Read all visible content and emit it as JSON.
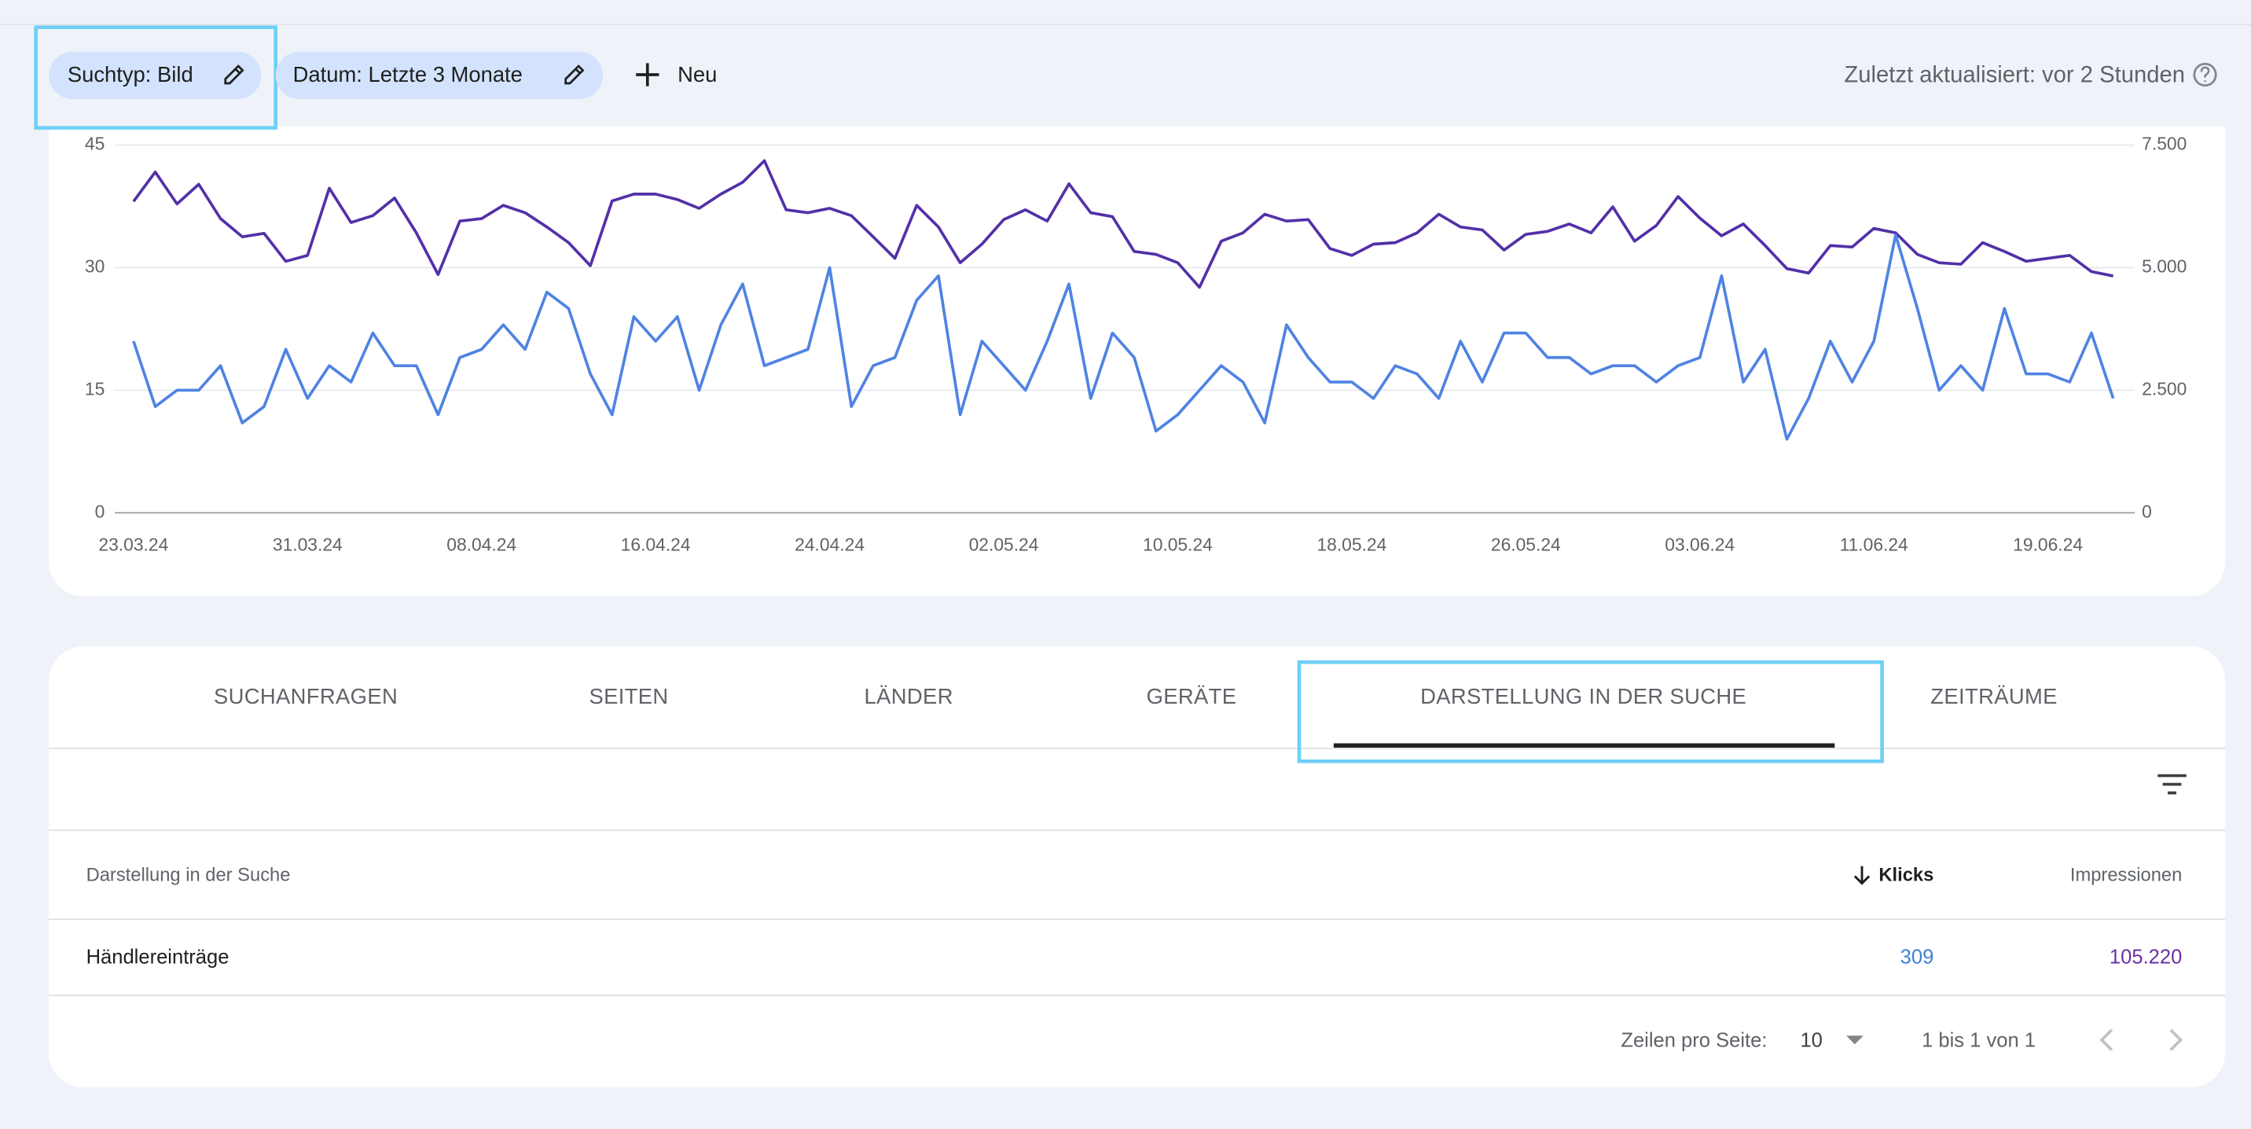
{
  "filters": [
    {
      "label": "Suchtyp: Bild"
    },
    {
      "label": "Datum: Letzte 3 Monate"
    }
  ],
  "new_button": "Neu",
  "last_updated": "Zuletzt aktualisiert: vor 2 Stunden",
  "chart_data": {
    "type": "line",
    "categories": [
      "23.03.24",
      null,
      null,
      null,
      null,
      null,
      null,
      null,
      "31.03.24",
      null,
      null,
      null,
      null,
      null,
      null,
      null,
      "08.04.24",
      null,
      null,
      null,
      null,
      null,
      null,
      null,
      "16.04.24",
      null,
      null,
      null,
      null,
      null,
      null,
      null,
      "24.04.24",
      null,
      null,
      null,
      null,
      null,
      null,
      null,
      "02.05.24",
      null,
      null,
      null,
      null,
      null,
      null,
      null,
      "10.05.24",
      null,
      null,
      null,
      null,
      null,
      null,
      null,
      "18.05.24",
      null,
      null,
      null,
      null,
      null,
      null,
      null,
      "26.05.24",
      null,
      null,
      null,
      null,
      null,
      null,
      null,
      "03.06.24",
      null,
      null,
      null,
      null,
      null,
      null,
      null,
      "11.06.24",
      null,
      null,
      null,
      null,
      null,
      null,
      null,
      "19.06.24",
      null,
      null,
      null
    ],
    "series": [
      {
        "color": "#4f83e3",
        "axis": "y",
        "values": [
          21,
          13,
          15,
          15,
          18,
          11,
          13,
          20,
          14,
          18,
          16,
          22,
          18,
          18,
          12,
          19,
          20,
          23,
          20,
          27,
          25,
          17,
          12,
          24,
          21,
          24,
          15,
          23,
          28,
          18,
          19,
          20,
          30,
          13,
          18,
          19,
          26,
          29,
          12,
          21,
          18,
          15,
          21,
          28,
          14,
          22,
          19,
          10,
          12,
          15,
          18,
          16,
          11,
          23,
          19,
          16,
          16,
          14,
          18,
          17,
          14,
          21,
          16,
          22,
          22,
          19,
          19,
          17,
          18,
          18,
          16,
          18,
          19,
          29,
          16,
          20,
          9,
          14,
          21,
          16,
          21,
          34,
          25,
          15,
          18,
          15,
          25,
          17,
          17,
          16,
          22,
          14
        ]
      },
      {
        "color": "#5330a8",
        "axis": "y2",
        "values": [
          6350,
          6950,
          6300,
          6700,
          6000,
          5630,
          5700,
          5130,
          5250,
          6620,
          5920,
          6060,
          6420,
          5710,
          4860,
          5950,
          6000,
          6270,
          6120,
          5830,
          5510,
          5040,
          6360,
          6500,
          6500,
          6390,
          6210,
          6500,
          6740,
          7180,
          6180,
          6120,
          6210,
          6060,
          5630,
          5190,
          6270,
          5830,
          5100,
          5480,
          5980,
          6180,
          5950,
          6710,
          6120,
          6040,
          5330,
          5270,
          5100,
          4600,
          5540,
          5710,
          6090,
          5950,
          5980,
          5390,
          5250,
          5480,
          5510,
          5710,
          6090,
          5830,
          5770,
          5360,
          5680,
          5740,
          5890,
          5710,
          6240,
          5540,
          5860,
          6450,
          6010,
          5650,
          5890,
          5450,
          4980,
          4890,
          5450,
          5420,
          5800,
          5710,
          5270,
          5100,
          5070,
          5510,
          5330,
          5130,
          5190,
          5250,
          4920,
          4830
        ]
      }
    ],
    "ylim": [
      0,
      45
    ],
    "yticks": [
      0,
      15,
      30,
      45
    ],
    "y2lim": [
      0,
      7500
    ],
    "y2ticks": [
      0,
      {
        "value": 2500,
        "label": "2.500"
      },
      {
        "value": 5000,
        "label": "5.000"
      },
      {
        "value": 7500,
        "label": "7.500"
      }
    ],
    "grid": true
  },
  "tabs": [
    "SUCHANFRAGEN",
    "SEITEN",
    "LÄNDER",
    "GERÄTE",
    "DARSTELLUNG IN DER SUCHE",
    "ZEITRÄUME"
  ],
  "active_tab": 4,
  "table": {
    "columns": [
      "Darstellung in der Suche",
      "Klicks",
      "Impressionen"
    ],
    "rows": [
      [
        "Händlereinträge",
        "309",
        "105.220"
      ]
    ]
  },
  "pagination": {
    "rows_per_page_label": "Zeilen pro Seite:",
    "rows_per_page": 10,
    "range": "1 bis 1 von 1"
  }
}
